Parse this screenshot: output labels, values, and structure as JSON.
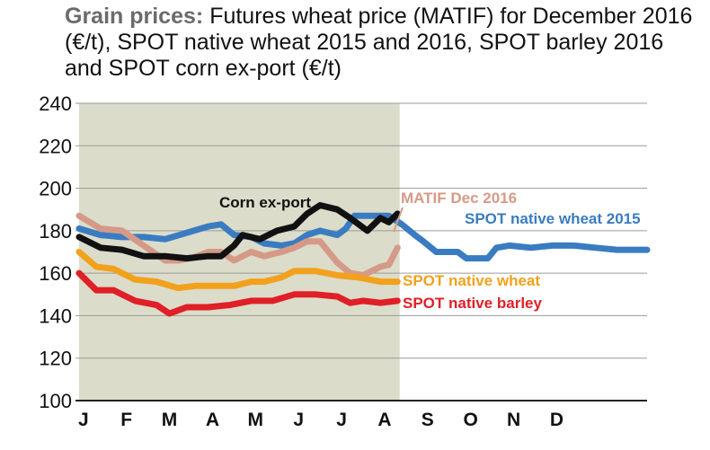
{
  "title": {
    "lead": "Grain prices:",
    "rest": "Futures wheat price (MATIF) for December 2016 (€/t), SPOT native wheat 2015 and 2016, SPOT barley 2016 and SPOT corn ex-port (€/t)"
  },
  "colors": {
    "shade": "#dcdccb",
    "grid": "#9a9a9a",
    "corn": "#111111",
    "matif": "#d59a87",
    "wheat2015": "#3a7cc0",
    "wheat": "#f2a11c",
    "barley": "#e01f26"
  },
  "chart_data": {
    "type": "line",
    "x_categories": [
      "J",
      "F",
      "M",
      "A",
      "M",
      "J",
      "J",
      "A",
      "S",
      "O",
      "N",
      "D"
    ],
    "y_ticks": [
      100,
      120,
      140,
      160,
      180,
      200,
      220,
      240
    ],
    "ylim": [
      100,
      240
    ],
    "xlim": [
      0,
      13.2
    ],
    "shaded_until_x": 7.45,
    "grid": "horizontal",
    "series": [
      {
        "name": "SPOT native wheat 2015",
        "color_key": "wheat2015",
        "points": [
          [
            0,
            181
          ],
          [
            0.5,
            178
          ],
          [
            1,
            177
          ],
          [
            1.5,
            177
          ],
          [
            2,
            176
          ],
          [
            2.5,
            179
          ],
          [
            3,
            182
          ],
          [
            3.3,
            183
          ],
          [
            3.6,
            178
          ],
          [
            4,
            177
          ],
          [
            4.3,
            174
          ],
          [
            4.7,
            173
          ],
          [
            5,
            174
          ],
          [
            5.3,
            178
          ],
          [
            5.6,
            180
          ],
          [
            6,
            178
          ],
          [
            6.2,
            181
          ],
          [
            6.4,
            187
          ],
          [
            6.8,
            187
          ],
          [
            7.2,
            187
          ],
          [
            7.5,
            183
          ],
          [
            7.8,
            178
          ],
          [
            8,
            175
          ],
          [
            8.3,
            170
          ],
          [
            8.8,
            170
          ],
          [
            9,
            167
          ],
          [
            9.5,
            167
          ],
          [
            9.7,
            172
          ],
          [
            10,
            173
          ],
          [
            10.5,
            172
          ],
          [
            11,
            173
          ],
          [
            11.5,
            173
          ],
          [
            12,
            172
          ],
          [
            12.5,
            171
          ],
          [
            13.2,
            171
          ]
        ]
      },
      {
        "name": "MATIF Dec 2016",
        "color_key": "matif",
        "points": [
          [
            0,
            187
          ],
          [
            0.5,
            181
          ],
          [
            1,
            180
          ],
          [
            1.5,
            173
          ],
          [
            2,
            166
          ],
          [
            2.3,
            166
          ],
          [
            2.6,
            167
          ],
          [
            3,
            170
          ],
          [
            3.3,
            170
          ],
          [
            3.6,
            166
          ],
          [
            4,
            170
          ],
          [
            4.3,
            168
          ],
          [
            4.7,
            170
          ],
          [
            5,
            172
          ],
          [
            5.3,
            175
          ],
          [
            5.6,
            175
          ],
          [
            6,
            165
          ],
          [
            6.3,
            160
          ],
          [
            6.6,
            159
          ],
          [
            7,
            163
          ],
          [
            7.2,
            164
          ],
          [
            7.4,
            172
          ]
        ]
      },
      {
        "name": "Corn ex-port",
        "color_key": "corn",
        "points": [
          [
            0,
            177
          ],
          [
            0.5,
            172
          ],
          [
            1,
            171
          ],
          [
            1.5,
            168
          ],
          [
            2,
            168
          ],
          [
            2.5,
            167
          ],
          [
            3,
            168
          ],
          [
            3.3,
            168
          ],
          [
            3.6,
            173
          ],
          [
            3.8,
            178
          ],
          [
            4.2,
            176
          ],
          [
            4.6,
            180
          ],
          [
            5,
            182
          ],
          [
            5.3,
            188
          ],
          [
            5.6,
            192
          ],
          [
            6,
            190
          ],
          [
            6.3,
            186
          ],
          [
            6.7,
            180
          ],
          [
            7,
            186
          ],
          [
            7.2,
            184
          ],
          [
            7.4,
            188
          ]
        ]
      },
      {
        "name": "SPOT native wheat",
        "color_key": "wheat",
        "points": [
          [
            0,
            170
          ],
          [
            0.4,
            163
          ],
          [
            0.8,
            162
          ],
          [
            1.3,
            157
          ],
          [
            1.8,
            156
          ],
          [
            2.3,
            153
          ],
          [
            2.7,
            154
          ],
          [
            3.2,
            154
          ],
          [
            3.6,
            154
          ],
          [
            4,
            156
          ],
          [
            4.3,
            156
          ],
          [
            4.7,
            158
          ],
          [
            5,
            161
          ],
          [
            5.5,
            161
          ],
          [
            6,
            159
          ],
          [
            6.5,
            158
          ],
          [
            7,
            156
          ],
          [
            7.4,
            156
          ]
        ]
      },
      {
        "name": "SPOT native barley",
        "color_key": "barley",
        "points": [
          [
            0,
            160
          ],
          [
            0.4,
            152
          ],
          [
            0.8,
            152
          ],
          [
            1.3,
            147
          ],
          [
            1.8,
            145
          ],
          [
            2.1,
            141
          ],
          [
            2.5,
            144
          ],
          [
            3,
            144
          ],
          [
            3.5,
            145
          ],
          [
            4,
            147
          ],
          [
            4.5,
            147
          ],
          [
            5,
            150
          ],
          [
            5.5,
            150
          ],
          [
            6,
            149
          ],
          [
            6.3,
            146
          ],
          [
            6.6,
            147
          ],
          [
            7,
            146
          ],
          [
            7.4,
            147
          ]
        ]
      }
    ],
    "annotations": [
      {
        "text": "Corn ex-port",
        "color_key": "corn"
      },
      {
        "text": "MATIF Dec 2016",
        "color_key": "matif"
      },
      {
        "text": "SPOT native wheat 2015",
        "color_key": "wheat2015"
      },
      {
        "text": "SPOT native wheat",
        "color_key": "wheat"
      },
      {
        "text": "SPOT native barley",
        "color_key": "barley"
      }
    ]
  }
}
